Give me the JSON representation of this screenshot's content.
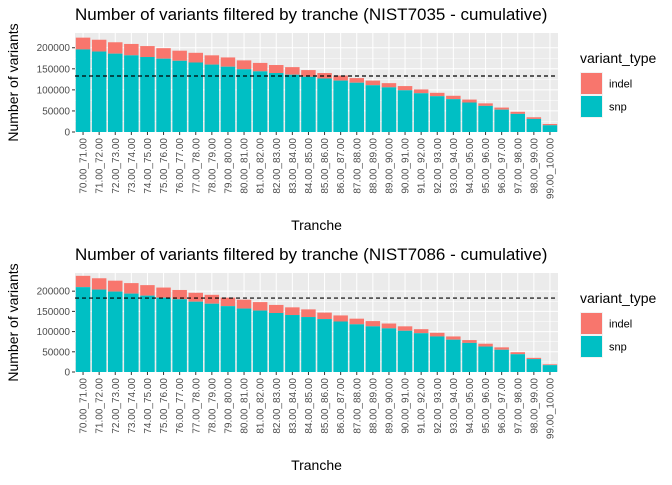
{
  "chart_data": [
    {
      "type": "bar",
      "stacked": true,
      "title": "Number of variants filtered by tranche (NIST7035 - cumulative)",
      "xlabel": "Tranche",
      "ylabel": "Number of variants",
      "ylim": [
        0,
        235000
      ],
      "yticks": [
        0,
        50000,
        100000,
        150000,
        200000
      ],
      "ytick_labels": [
        "0",
        "50000",
        "100000",
        "150000",
        "200000"
      ],
      "grid": true,
      "hline": 133000,
      "legend": {
        "title": "variant_type",
        "position": "right",
        "entries": [
          "indel",
          "snp"
        ]
      },
      "colors": {
        "indel": "#F8766D",
        "snp": "#00BFC4",
        "panel": "#EBEBEB",
        "grid": "#FFFFFF"
      },
      "categories": [
        "70.00_71.00",
        "71.00_72.00",
        "72.00_73.00",
        "73.00_74.00",
        "74.00_75.00",
        "75.00_76.00",
        "76.00_77.00",
        "77.00_78.00",
        "78.00_79.00",
        "79.00_80.00",
        "80.00_81.00",
        "81.00_82.00",
        "82.00_83.00",
        "83.00_84.00",
        "84.00_85.00",
        "85.00_86.00",
        "86.00_87.00",
        "87.00_88.00",
        "88.00_89.00",
        "89.00_90.00",
        "90.00_91.00",
        "91.00_92.00",
        "92.00_93.00",
        "93.00_94.00",
        "94.00_95.00",
        "95.00_96.00",
        "96.00_97.00",
        "97.00_98.00",
        "98.00_99.00",
        "99.00_100.00"
      ],
      "series": [
        {
          "name": "snp",
          "values": [
            196000,
            191000,
            186000,
            182000,
            178000,
            174000,
            169000,
            165000,
            160000,
            155000,
            149000,
            144000,
            140000,
            136000,
            131000,
            127000,
            122000,
            117000,
            111000,
            106000,
            99000,
            92000,
            85000,
            78000,
            70000,
            62000,
            53000,
            43000,
            31000,
            16000
          ]
        },
        {
          "name": "indel",
          "values": [
            28000,
            28000,
            27000,
            27000,
            26000,
            25000,
            24000,
            23000,
            22000,
            22000,
            21000,
            20000,
            19000,
            18000,
            16000,
            13000,
            12000,
            11000,
            11000,
            10000,
            10000,
            9000,
            8000,
            8000,
            7000,
            6000,
            5000,
            5000,
            4000,
            3000
          ]
        }
      ]
    },
    {
      "type": "bar",
      "stacked": true,
      "title": "Number of variants filtered by tranche (NIST7086 - cumulative)",
      "xlabel": "Tranche",
      "ylabel": "Number of variants",
      "ylim": [
        0,
        245000
      ],
      "yticks": [
        0,
        50000,
        100000,
        150000,
        200000
      ],
      "ytick_labels": [
        "0",
        "50000",
        "100000",
        "150000",
        "200000"
      ],
      "grid": true,
      "hline": 183000,
      "legend": {
        "title": "variant_type",
        "position": "right",
        "entries": [
          "indel",
          "snp"
        ]
      },
      "colors": {
        "indel": "#F8766D",
        "snp": "#00BFC4",
        "panel": "#EBEBEB",
        "grid": "#FFFFFF"
      },
      "categories": [
        "70.00_71.00",
        "71.00_72.00",
        "72.00_73.00",
        "73.00_74.00",
        "74.00_75.00",
        "75.00_76.00",
        "76.00_77.00",
        "77.00_78.00",
        "78.00_79.00",
        "79.00_80.00",
        "80.00_81.00",
        "81.00_82.00",
        "82.00_83.00",
        "83.00_84.00",
        "84.00_85.00",
        "85.00_86.00",
        "86.00_87.00",
        "87.00_88.00",
        "88.00_89.00",
        "89.00_90.00",
        "90.00_91.00",
        "91.00_92.00",
        "92.00_93.00",
        "93.00_94.00",
        "94.00_95.00",
        "95.00_96.00",
        "96.00_97.00",
        "97.00_98.00",
        "98.00_99.00",
        "99.00_100.00"
      ],
      "series": [
        {
          "name": "snp",
          "values": [
            210000,
            204000,
            199000,
            194000,
            189000,
            184000,
            180000,
            174000,
            169000,
            163000,
            157000,
            152000,
            146000,
            141000,
            136000,
            131000,
            125000,
            118000,
            113000,
            108000,
            102000,
            96000,
            88000,
            80000,
            72000,
            63000,
            55000,
            44000,
            32000,
            17000
          ]
        },
        {
          "name": "indel",
          "values": [
            28000,
            28000,
            27000,
            26000,
            26000,
            25000,
            23000,
            22000,
            22000,
            21000,
            22000,
            21000,
            20000,
            19000,
            19000,
            16000,
            15000,
            14000,
            13000,
            12000,
            11000,
            10000,
            9000,
            8000,
            7000,
            7000,
            6000,
            5000,
            3000,
            2000
          ]
        }
      ]
    }
  ]
}
